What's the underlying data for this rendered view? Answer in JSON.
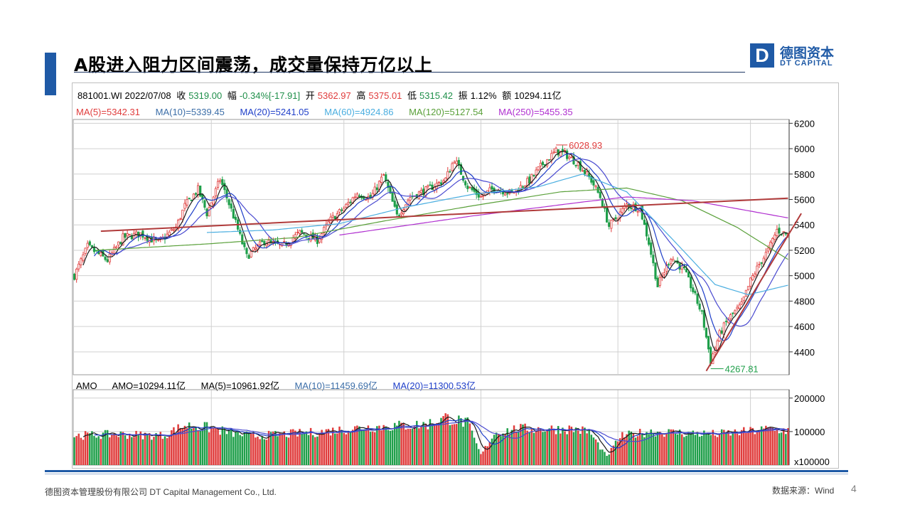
{
  "title": "A股进入阻力区间震荡，成交量保持万亿以上",
  "logo": {
    "mark": "D",
    "cn": "德图资本",
    "en": "DT CAPITAL"
  },
  "info": {
    "code": "881001.WI 2022/07/08",
    "close_label": "收",
    "close": "5319.00",
    "chg_label": "幅",
    "chg": "-0.34%[-17.91]",
    "open_label": "开",
    "open": "5362.97",
    "high_label": "高",
    "high": "5375.01",
    "low_label": "低",
    "low": "5315.42",
    "amp_label": "振",
    "amp": "1.12%",
    "amt_label": "额",
    "amt": "10294.11亿"
  },
  "ma_legend": {
    "ma5": "MA(5)=5342.31",
    "ma10": "MA(10)=5339.45",
    "ma20": "MA(20)=5241.05",
    "ma60": "MA(60)=4924.86",
    "ma120": "MA(120)=5127.54",
    "ma250": "MA(250)=5455.35"
  },
  "amo_legend": {
    "name": "AMO",
    "amo": "AMO=10294.11亿",
    "ma5": "MA(5)=10961.92亿",
    "ma10": "MA(10)=11459.69亿",
    "ma20": "MA(20)=11300.53亿"
  },
  "colors": {
    "up": "#e03c3c",
    "down": "#1f9f4a",
    "ma5": "#1a1a1a",
    "ma10": "#1f3fc9",
    "ma20": "#4a4ad0",
    "ma60": "#4aaee0",
    "ma120": "#5aa03a",
    "ma250": "#b030d0",
    "trendline": "#b03a3a"
  },
  "chart_data": [
    {
      "type": "candlestick",
      "title": "881001.WI",
      "y_ticks": [
        4400,
        4600,
        4800,
        5000,
        5200,
        5400,
        5600,
        5800,
        6000,
        6200
      ],
      "ylim": [
        4220,
        6230
      ],
      "annotations": [
        {
          "text": "6028.93",
          "value": 6028.93,
          "kind": "high"
        },
        {
          "text": "4267.81",
          "value": 4267.81,
          "kind": "low"
        }
      ],
      "price_path": [
        [
          0,
          5000
        ],
        [
          6,
          5230
        ],
        [
          15,
          5120
        ],
        [
          22,
          5300
        ],
        [
          30,
          5330
        ],
        [
          38,
          5260
        ],
        [
          46,
          5380
        ],
        [
          50,
          5550
        ],
        [
          56,
          5680
        ],
        [
          60,
          5490
        ],
        [
          66,
          5760
        ],
        [
          72,
          5470
        ],
        [
          78,
          5150
        ],
        [
          86,
          5270
        ],
        [
          94,
          5230
        ],
        [
          102,
          5340
        ],
        [
          110,
          5280
        ],
        [
          116,
          5440
        ],
        [
          122,
          5530
        ],
        [
          128,
          5650
        ],
        [
          134,
          5610
        ],
        [
          140,
          5790
        ],
        [
          146,
          5470
        ],
        [
          152,
          5620
        ],
        [
          160,
          5680
        ],
        [
          168,
          5760
        ],
        [
          172,
          5920
        ],
        [
          178,
          5700
        ],
        [
          184,
          5620
        ],
        [
          190,
          5690
        ],
        [
          198,
          5650
        ],
        [
          206,
          5750
        ],
        [
          212,
          5880
        ],
        [
          218,
          5980
        ],
        [
          222,
          5960
        ],
        [
          228,
          5880
        ],
        [
          234,
          5750
        ],
        [
          238,
          5620
        ],
        [
          242,
          5390
        ],
        [
          246,
          5470
        ],
        [
          250,
          5560
        ],
        [
          256,
          5530
        ],
        [
          260,
          5260
        ],
        [
          264,
          4920
        ],
        [
          270,
          5150
        ],
        [
          276,
          5040
        ],
        [
          280,
          4880
        ],
        [
          284,
          4700
        ],
        [
          288,
          4330
        ],
        [
          292,
          4540
        ],
        [
          296,
          4660
        ],
        [
          302,
          4770
        ],
        [
          306,
          4960
        ],
        [
          310,
          5090
        ],
        [
          314,
          5200
        ],
        [
          318,
          5360
        ],
        [
          323,
          5320
        ]
      ],
      "ma_paths": {
        "MA(60)": [
          [
            60,
            5340
          ],
          [
            90,
            5360
          ],
          [
            120,
            5410
          ],
          [
            150,
            5540
          ],
          [
            180,
            5640
          ],
          [
            210,
            5700
          ],
          [
            230,
            5800
          ],
          [
            250,
            5660
          ],
          [
            270,
            5300
          ],
          [
            290,
            4930
          ],
          [
            305,
            4850
          ],
          [
            323,
            4925
          ]
        ],
        "MA(120)": [
          [
            10,
            5200
          ],
          [
            60,
            5250
          ],
          [
            100,
            5300
          ],
          [
            140,
            5430
          ],
          [
            180,
            5550
          ],
          [
            220,
            5660
          ],
          [
            250,
            5690
          ],
          [
            275,
            5590
          ],
          [
            300,
            5380
          ],
          [
            323,
            5128
          ]
        ],
        "MA(250)": [
          [
            120,
            5320
          ],
          [
            180,
            5470
          ],
          [
            230,
            5580
          ],
          [
            250,
            5620
          ],
          [
            280,
            5590
          ],
          [
            323,
            5455
          ]
        ]
      },
      "trendlines": [
        {
          "from": [
            12,
            5350
          ],
          "to": [
            323,
            5610
          ]
        },
        {
          "from": [
            286,
            4250
          ],
          "to": [
            329,
            5490
          ]
        }
      ]
    },
    {
      "type": "bar",
      "title": "AMO",
      "y_ticks_labels": [
        "200000",
        "100000",
        "x100000"
      ],
      "y_ticks": [
        200000,
        100000
      ],
      "ylim": [
        0,
        225000
      ],
      "volume_path": [
        [
          0,
          88000
        ],
        [
          20,
          92000
        ],
        [
          40,
          88000
        ],
        [
          50,
          118000
        ],
        [
          60,
          112000
        ],
        [
          70,
          98000
        ],
        [
          80,
          86000
        ],
        [
          90,
          90000
        ],
        [
          110,
          98000
        ],
        [
          130,
          112000
        ],
        [
          150,
          118000
        ],
        [
          160,
          122000
        ],
        [
          168,
          142000
        ],
        [
          178,
          125000
        ],
        [
          184,
          30000
        ],
        [
          190,
          95000
        ],
        [
          200,
          108000
        ],
        [
          210,
          108000
        ],
        [
          225,
          108000
        ],
        [
          233,
          100000
        ],
        [
          241,
          25000
        ],
        [
          247,
          85000
        ],
        [
          260,
          100000
        ],
        [
          275,
          96000
        ],
        [
          290,
          92000
        ],
        [
          305,
          100000
        ],
        [
          315,
          108000
        ],
        [
          323,
          103000
        ]
      ]
    }
  ],
  "footer": {
    "company": "德图资本管理股份有限公司  DT Capital Management  Co., Ltd.",
    "source": "数据来源：Wind",
    "page": "4"
  }
}
